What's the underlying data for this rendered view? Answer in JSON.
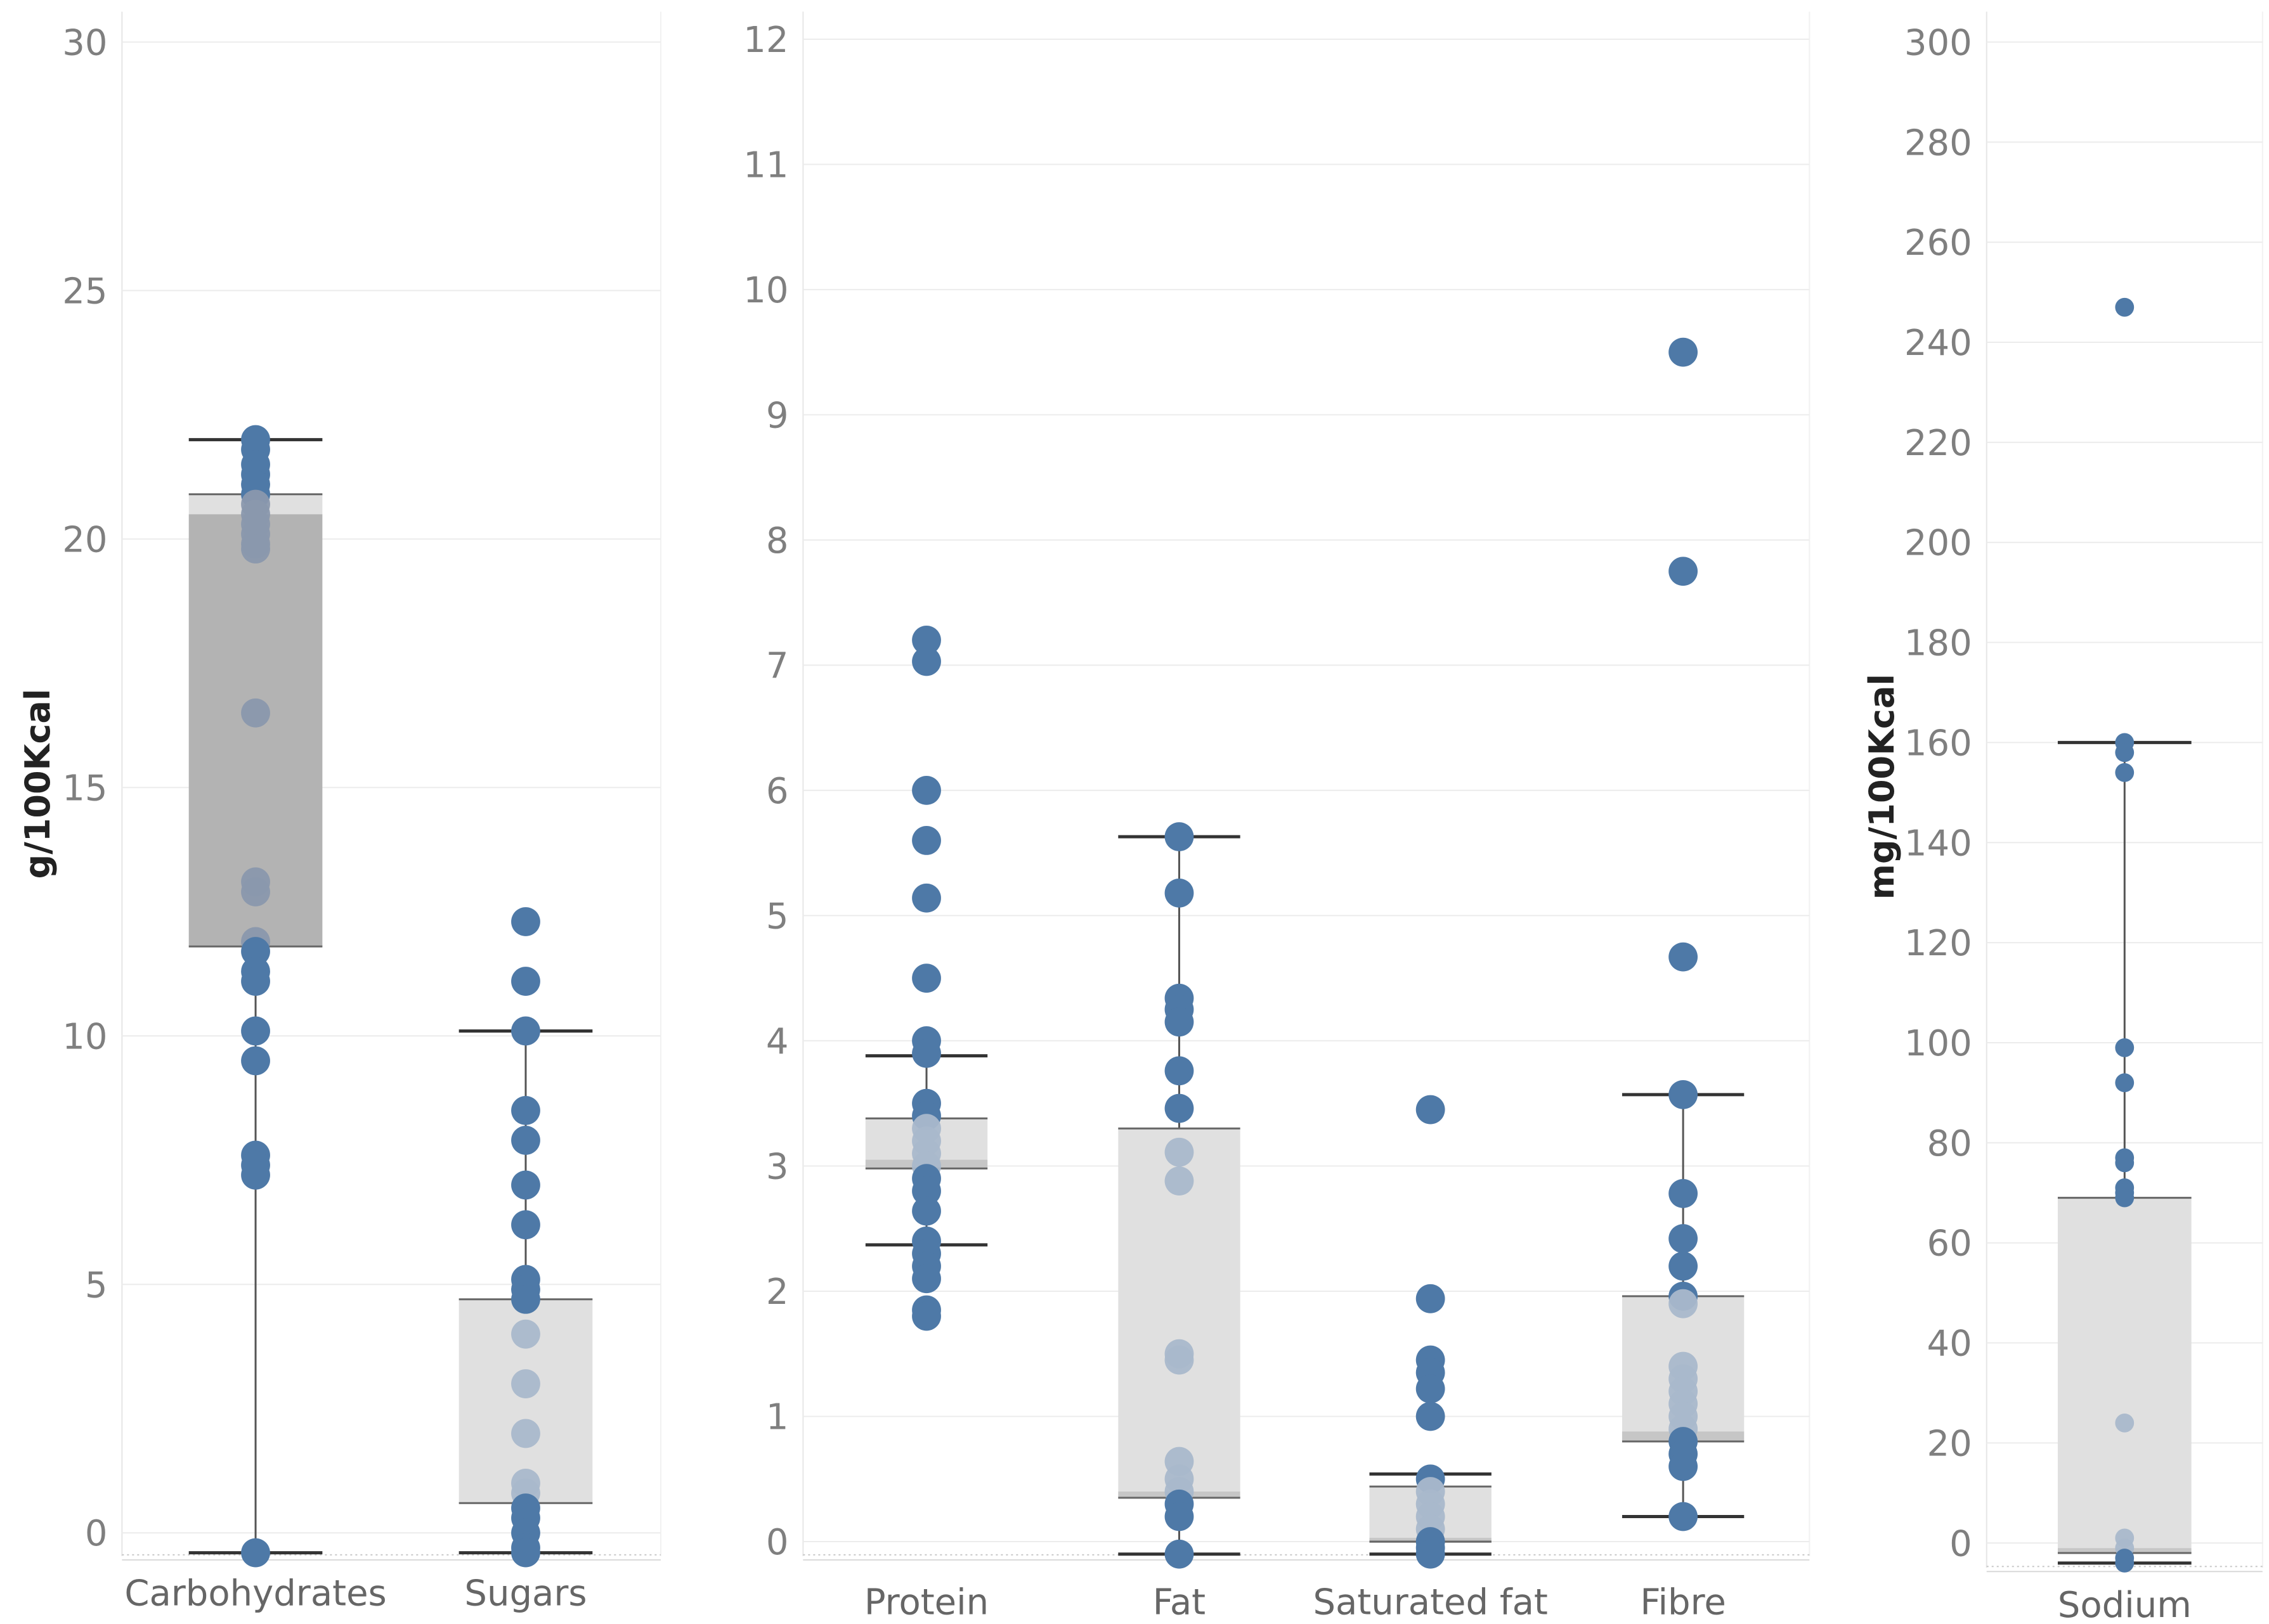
{
  "colors": {
    "dot": "#4e79a7",
    "dot_in_box": "#a9b8cb",
    "box_upper": "#b7b7b7",
    "box_upper_carb": "#b3b3b3",
    "box_light": "#e0e0e0",
    "median_band": "#c6c6c6",
    "whisker": "#333333",
    "grid": "#ececec",
    "tick_text": "#7f7f7f",
    "axis_title": "#222222"
  },
  "chart_data": [
    {
      "type": "box-plot",
      "panel": "g-left",
      "ylabel": "g/100Kcal",
      "ylim": [
        -0.5,
        30
      ],
      "yticks": [
        0,
        5,
        10,
        15,
        20,
        25,
        30
      ],
      "yticklabels": [
        "0",
        "5",
        "10",
        "15",
        "20",
        "25",
        "30"
      ],
      "categories": [
        "Carbohydrates",
        "Sugars"
      ],
      "boxes": [
        {
          "name": "Carbohydrates",
          "whisker_low": -0.4,
          "q1": 11.8,
          "median": 20.5,
          "q3": 20.9,
          "whisker_high": 22.0,
          "style": "dark-lower"
        },
        {
          "name": "Sugars",
          "whisker_low": -0.4,
          "q1": 0.6,
          "q3": 4.7,
          "whisker_high": 10.1,
          "style": "light"
        }
      ],
      "points": [
        {
          "category": "Carbohydrates",
          "values": [
            22.0,
            21.8,
            21.5,
            21.3,
            21.1,
            20.9,
            20.7,
            20.5,
            20.3,
            20.1,
            19.9,
            19.8,
            16.5,
            13.1,
            12.9,
            11.9,
            11.7,
            11.3,
            11.1,
            10.1,
            9.5,
            7.6,
            7.4,
            7.2,
            -0.4
          ]
        },
        {
          "category": "Sugars",
          "values": [
            12.3,
            11.1,
            10.1,
            8.5,
            7.9,
            7.0,
            6.2,
            5.1,
            4.9,
            4.7,
            4.0,
            3.0,
            2.0,
            1.0,
            0.8,
            0.5,
            0.3,
            0.0,
            -0.3,
            -0.4
          ]
        }
      ]
    },
    {
      "type": "box-plot",
      "panel": "g-middle",
      "ylabel": "",
      "ylim": [
        -0.1,
        12.2
      ],
      "yticks": [
        0,
        1,
        2,
        3,
        4,
        5,
        6,
        7,
        8,
        9,
        10,
        11,
        12
      ],
      "yticklabels": [
        "0",
        "1",
        "2",
        "3",
        "4",
        "5",
        "6",
        "7",
        "8",
        "9",
        "10",
        "11",
        "12"
      ],
      "categories": [
        "Protein",
        "Fat",
        "Saturated fat",
        "Fibre"
      ],
      "boxes": [
        {
          "name": "Protein",
          "whisker_low": 2.37,
          "q1": 2.98,
          "median": 3.05,
          "q3": 3.38,
          "whisker_high": 3.88
        },
        {
          "name": "Fat",
          "whisker_low": -0.1,
          "q1": 0.35,
          "median": 0.4,
          "q3": 3.3,
          "whisker_high": 5.63
        },
        {
          "name": "Saturated fat",
          "whisker_low": -0.1,
          "q1": 0.0,
          "median": 0.03,
          "q3": 0.44,
          "whisker_high": 0.54
        },
        {
          "name": "Fibre",
          "whisker_low": 0.2,
          "q1": 0.8,
          "median": 0.88,
          "q3": 1.96,
          "whisker_high": 3.57
        }
      ],
      "points": [
        {
          "category": "Protein",
          "values": [
            7.2,
            7.03,
            6.0,
            5.6,
            5.14,
            4.5,
            4.0,
            3.9,
            3.5,
            3.4,
            3.3,
            3.2,
            3.1,
            3.0,
            2.9,
            2.8,
            2.64,
            2.4,
            2.3,
            2.2,
            2.1,
            1.85,
            1.8
          ]
        },
        {
          "category": "Fat",
          "values": [
            5.63,
            5.18,
            4.34,
            4.25,
            4.15,
            3.76,
            3.46,
            3.11,
            2.88,
            1.5,
            1.45,
            0.64,
            0.5,
            0.4,
            0.3,
            0.2,
            -0.1
          ]
        },
        {
          "category": "Saturated fat",
          "values": [
            3.45,
            1.94,
            1.45,
            1.35,
            1.22,
            1.0,
            0.5,
            0.4,
            0.3,
            0.2,
            0.1,
            0.0,
            -0.05,
            -0.1
          ]
        },
        {
          "category": "Fibre",
          "values": [
            9.5,
            7.75,
            4.67,
            3.57,
            2.78,
            2.42,
            2.2,
            1.96,
            1.9,
            1.4,
            1.3,
            1.2,
            1.1,
            1.0,
            0.9,
            0.8,
            0.7,
            0.6,
            0.2
          ]
        }
      ]
    },
    {
      "type": "box-plot",
      "panel": "mg-right",
      "ylabel": "mg/100Kcal",
      "ylim": [
        -4,
        300
      ],
      "yticks": [
        0,
        20,
        40,
        60,
        80,
        100,
        120,
        140,
        160,
        180,
        200,
        220,
        240,
        260,
        280,
        300
      ],
      "yticklabels": [
        "0",
        "20",
        "40",
        "60",
        "80",
        "100",
        "120",
        "140",
        "160",
        "180",
        "200",
        "220",
        "240",
        "260",
        "280",
        "300"
      ],
      "categories": [
        "Sodium"
      ],
      "boxes": [
        {
          "name": "Sodium",
          "whisker_low": -4,
          "q1": -2,
          "median": -1,
          "q3": 69,
          "whisker_high": 160
        }
      ],
      "points": [
        {
          "category": "Sodium",
          "values": [
            247,
            160,
            158,
            154,
            99,
            92,
            77,
            76,
            71,
            70,
            69,
            24,
            1,
            -1,
            -3,
            -4
          ]
        }
      ]
    }
  ]
}
